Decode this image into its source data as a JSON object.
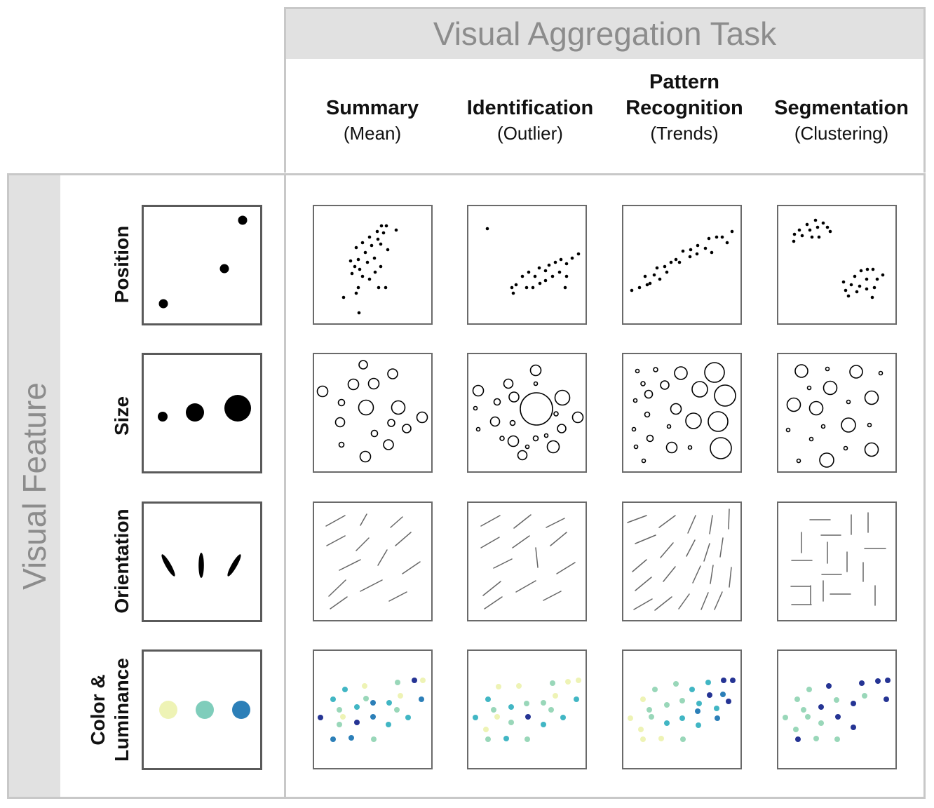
{
  "task_title": "Visual Aggregation Task",
  "feature_title": "Visual Feature",
  "tasks": [
    {
      "title_lines": [
        "Summary"
      ],
      "subtitle": "(Mean)"
    },
    {
      "title_lines": [
        "Identification"
      ],
      "subtitle": "(Outlier)"
    },
    {
      "title_lines": [
        "Pattern",
        "Recognition"
      ],
      "subtitle": "(Trends)"
    },
    {
      "title_lines": [
        "Segmentation"
      ],
      "subtitle": "(Clustering)"
    }
  ],
  "features": [
    {
      "label_lines": [
        "Position"
      ]
    },
    {
      "label_lines": [
        "Size"
      ]
    },
    {
      "label_lines": [
        "Orientation"
      ]
    },
    {
      "label_lines": [
        "Color &",
        "Luminance"
      ]
    }
  ],
  "colors": {
    "frame": "#c8c8c8",
    "band": "#e1e1e1",
    "title_text": "#8c8c8c",
    "palette": [
      "#eef3b5",
      "#99d7b9",
      "#41b6c4",
      "#2c7fb8",
      "#253494"
    ]
  }
}
